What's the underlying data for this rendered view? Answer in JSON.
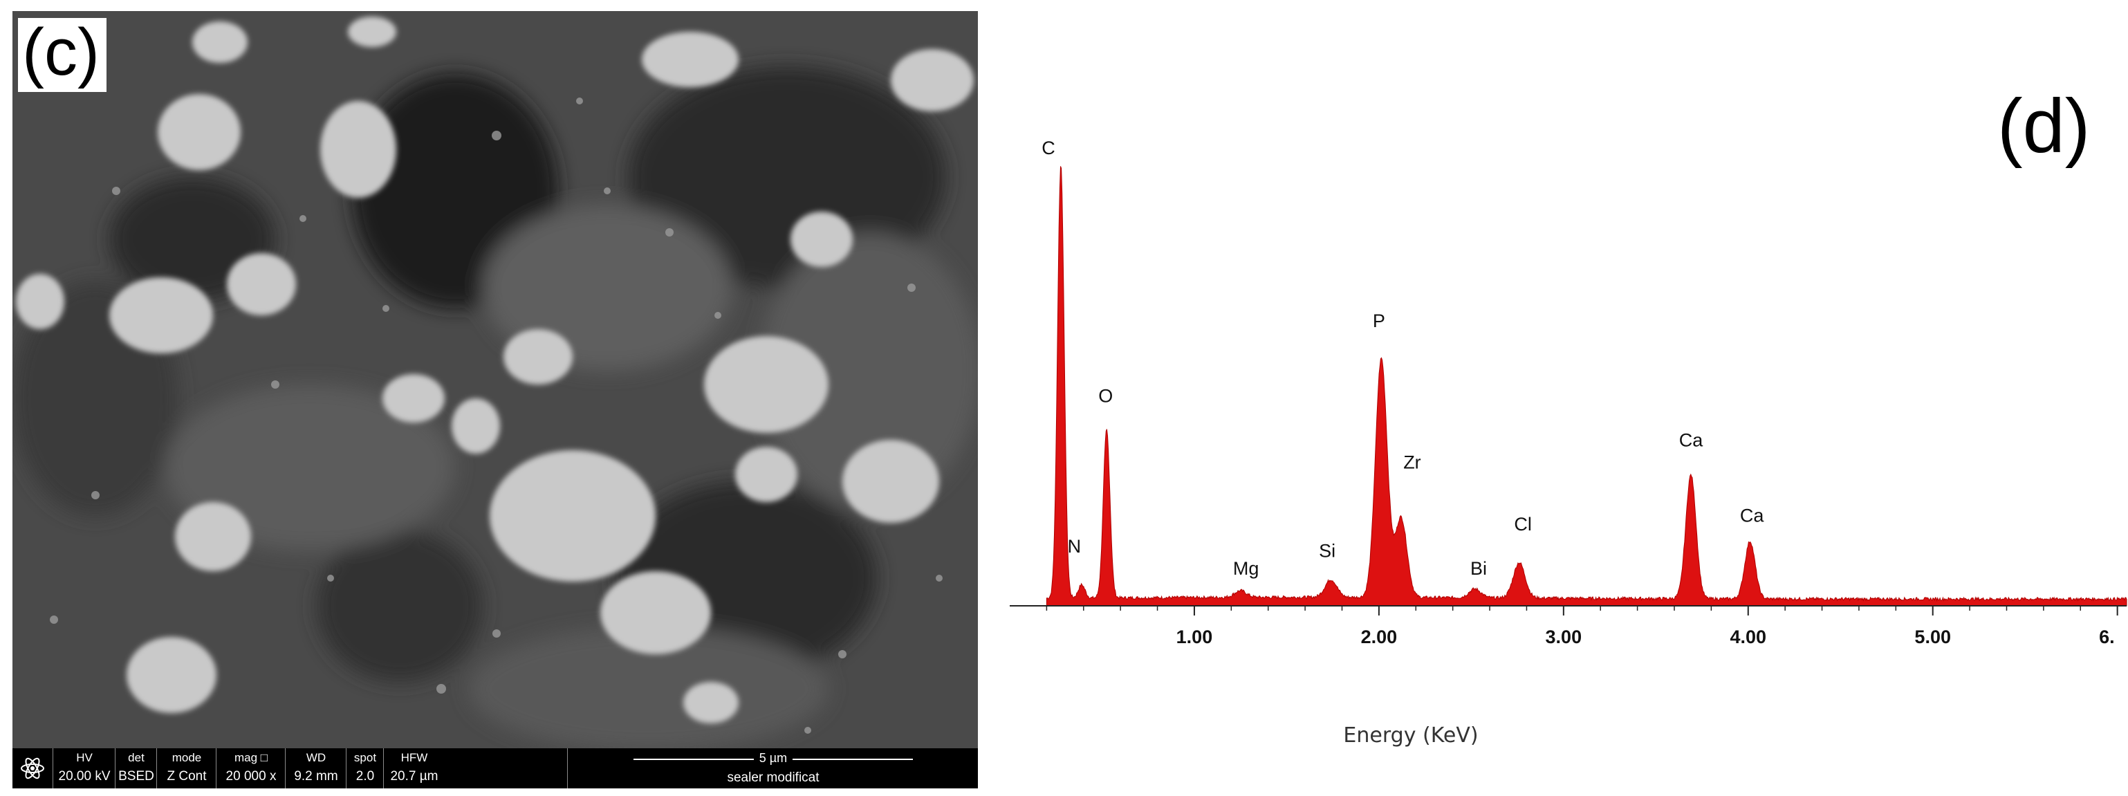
{
  "panel_c": {
    "label": "(c)",
    "databar": {
      "icon": "fei-logo-icon",
      "fields": [
        {
          "header": "HV",
          "value": "20.00 kV"
        },
        {
          "header": "det",
          "value": "BSED"
        },
        {
          "header": "mode",
          "value": "Z Cont"
        },
        {
          "header": "mag □",
          "value": "20 000 x"
        },
        {
          "header": "WD",
          "value": "9.2 mm"
        },
        {
          "header": "spot",
          "value": "2.0"
        },
        {
          "header": "HFW",
          "value": "20.7 µm"
        }
      ],
      "scale_bar": "5 µm",
      "sample": "sealer modificat"
    }
  },
  "panel_d": {
    "label": "(d)"
  },
  "chart_data": {
    "type": "line",
    "title": "",
    "xlabel": "Energy (KeV)",
    "ylabel": "",
    "xlim": [
      0.0,
      6.05
    ],
    "ylim": [
      0,
      100
    ],
    "x_ticks": [
      "1.00",
      "2.00",
      "3.00",
      "4.00",
      "5.00",
      "6."
    ],
    "x_tick_values": [
      1.0,
      2.0,
      3.0,
      4.0,
      5.0,
      6.0
    ],
    "fill_color": "#dd1111",
    "series": [
      {
        "peaks": [
          {
            "element": "C",
            "energy": 0.277,
            "height": 98
          },
          {
            "element": "N",
            "energy": 0.39,
            "height": 3
          },
          {
            "element": "O",
            "energy": 0.525,
            "height": 38
          },
          {
            "element": "Mg",
            "energy": 1.25,
            "height": 1.5
          },
          {
            "element": "Si",
            "energy": 1.74,
            "height": 4
          },
          {
            "element": "P",
            "energy": 2.013,
            "height": 54
          },
          {
            "element": "Zr",
            "energy": 2.12,
            "height": 18
          },
          {
            "element": "Bi",
            "energy": 2.52,
            "height": 2
          },
          {
            "element": "Cl",
            "energy": 2.76,
            "height": 8
          },
          {
            "element": "Ca",
            "energy": 3.69,
            "height": 28
          },
          {
            "element": "Ca",
            "energy": 4.01,
            "height": 13
          }
        ]
      }
    ],
    "peak_labels": [
      {
        "text": "C",
        "energy": 0.21,
        "height": 102
      },
      {
        "text": "N",
        "energy": 0.35,
        "height": 12
      },
      {
        "text": "O",
        "energy": 0.52,
        "height": 46
      },
      {
        "text": "Mg",
        "energy": 1.28,
        "height": 7
      },
      {
        "text": "Si",
        "energy": 1.72,
        "height": 11
      },
      {
        "text": "P",
        "energy": 2.0,
        "height": 63
      },
      {
        "text": "Zr",
        "energy": 2.18,
        "height": 31
      },
      {
        "text": "Bi",
        "energy": 2.54,
        "height": 7
      },
      {
        "text": "Cl",
        "energy": 2.78,
        "height": 17
      },
      {
        "text": "Ca",
        "energy": 3.69,
        "height": 36
      },
      {
        "text": "Ca",
        "energy": 4.02,
        "height": 19
      }
    ]
  }
}
